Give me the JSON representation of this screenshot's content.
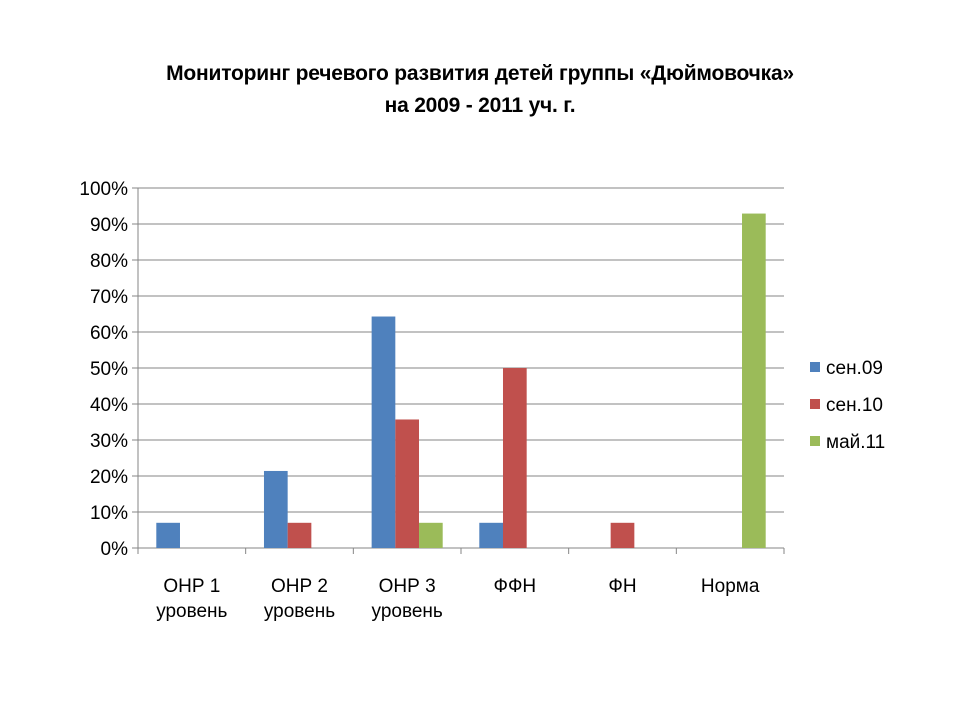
{
  "chart_data": {
    "type": "bar",
    "title": [
      "Мониторинг речевого развития детей группы «Дюймовочка»",
      "на 2009  - 2011 уч. г."
    ],
    "categories": [
      [
        "ОНР 1",
        "уровень"
      ],
      [
        "ОНР 2",
        "уровень"
      ],
      [
        "ОНР 3",
        "уровень"
      ],
      [
        "ФФН"
      ],
      [
        "ФН"
      ],
      [
        "Норма"
      ]
    ],
    "series": [
      {
        "name": "сен.09",
        "color": "#4F81BD",
        "values": [
          7,
          21.4,
          64.3,
          7,
          0,
          0
        ]
      },
      {
        "name": "сен.10",
        "color": "#C0504D",
        "values": [
          0,
          7,
          35.7,
          50,
          7,
          0
        ]
      },
      {
        "name": "май.11",
        "color": "#9BBB59",
        "values": [
          0,
          0,
          7,
          0,
          0,
          92.9
        ]
      }
    ],
    "ylim": [
      0,
      100
    ],
    "yticks": [
      "0%",
      "10%",
      "20%",
      "30%",
      "40%",
      "50%",
      "60%",
      "70%",
      "80%",
      "90%",
      "100%"
    ],
    "xlabel": "",
    "ylabel": "",
    "grid": true,
    "legend_position": "right"
  }
}
